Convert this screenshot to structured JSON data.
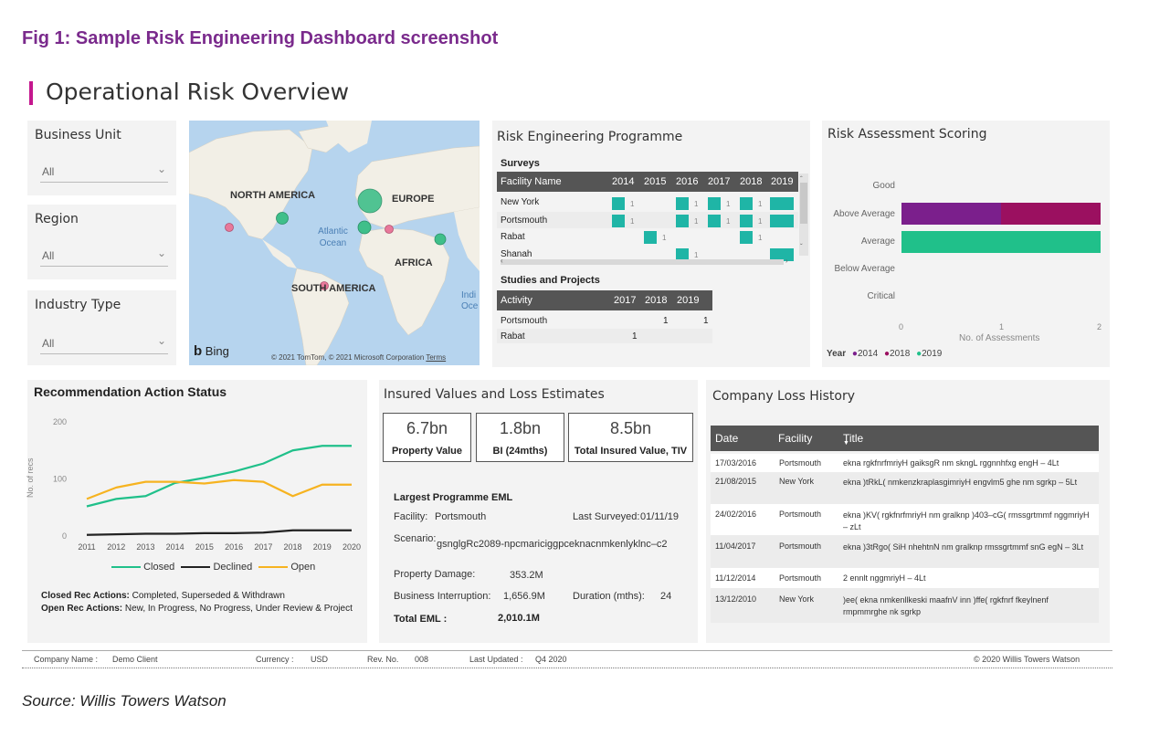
{
  "figure_caption": "Fig 1: Sample Risk Engineering Dashboard screenshot",
  "page_title": "Operational Risk Overview",
  "slicers": [
    {
      "label": "Business Unit",
      "value": "All"
    },
    {
      "label": "Region",
      "value": "All"
    },
    {
      "label": "Industry Type",
      "value": "All"
    }
  ],
  "map": {
    "labels": [
      "NORTH AMERICA",
      "EUROPE",
      "Atlantic Ocean",
      "AFRICA",
      "SOUTH AMERICA",
      "Indi Oce"
    ],
    "logo": "Bing",
    "copyright": "© 2021 TomTom, © 2021 Microsoft Corporation",
    "terms": "Terms",
    "marker_colors": {
      "closed": "#3fbf8a",
      "open": "#e8789a"
    }
  },
  "risk_programme": {
    "title": "Risk Engineering Programme",
    "surveys_label": "Surveys",
    "survey_header": [
      "Facility Name",
      "2014",
      "2015",
      "2016",
      "2017",
      "2018",
      "2019"
    ],
    "surveys": [
      {
        "name": "New York",
        "years": [
          1,
          0,
          1,
          1,
          1,
          1
        ]
      },
      {
        "name": "Portsmouth",
        "years": [
          1,
          0,
          1,
          1,
          1,
          1
        ]
      },
      {
        "name": "Rabat",
        "years": [
          0,
          1,
          0,
          0,
          1,
          0
        ]
      },
      {
        "name": "Shanah",
        "years": [
          0,
          0,
          1,
          0,
          0,
          1
        ]
      }
    ],
    "studies_label": "Studies and Projects",
    "studies_header": [
      "Activity",
      "2017",
      "2018",
      "2019"
    ],
    "studies": [
      {
        "name": "Portsmouth",
        "values": [
          "",
          "1",
          "1"
        ]
      },
      {
        "name": "Rabat",
        "values": [
          "1",
          "",
          ""
        ]
      }
    ]
  },
  "risk_scoring": {
    "title": "Risk Assessment Scoring",
    "categories": [
      "Good",
      "Above Average",
      "Average",
      "Below Average",
      "Critical"
    ],
    "x_ticks": [
      "0",
      "1",
      "2"
    ],
    "x_label": "No. of Assessments",
    "legend_title": "Year",
    "legend": [
      {
        "label": "2014",
        "color": "#7b1f8c"
      },
      {
        "label": "2018",
        "color": "#9b1060"
      },
      {
        "label": "2019",
        "color": "#20c08a"
      }
    ]
  },
  "chart_data": {
    "type": "line",
    "title": "Recommendation Action Status",
    "ylabel": "No. of recs",
    "xlabel": "",
    "x": [
      2011,
      2012,
      2013,
      2014,
      2015,
      2016,
      2017,
      2018,
      2019,
      2020
    ],
    "ylim": [
      0,
      200
    ],
    "y_ticks": [
      0,
      100,
      200
    ],
    "series": [
      {
        "name": "Closed",
        "color": "#20c08a",
        "values": [
          52,
          65,
          70,
          93,
          102,
          113,
          127,
          150,
          158,
          158
        ]
      },
      {
        "name": "Declined",
        "color": "#222222",
        "values": [
          2,
          3,
          4,
          4,
          5,
          5,
          6,
          10,
          10,
          10
        ]
      },
      {
        "name": "Open",
        "color": "#f6b320",
        "values": [
          65,
          85,
          95,
          95,
          92,
          98,
          95,
          70,
          90,
          90
        ]
      }
    ],
    "legend_position": "bottom"
  },
  "rec_notes": [
    {
      "label": "Closed Rec Actions:",
      "text": "Completed, Superseded & Withdrawn"
    },
    {
      "label": "Open Rec Actions:",
      "text": "New, In Progress, No Progress, Under Review & Project"
    }
  ],
  "insured": {
    "title": "Insured Values and Loss Estimates",
    "kpis": [
      {
        "value": "6.7bn",
        "label": "Property Value"
      },
      {
        "value": "1.8bn",
        "label": "BI (24mths)"
      },
      {
        "value": "8.5bn",
        "label": "Total Insured Value, TIV"
      }
    ],
    "eml_title": "Largest Programme EML",
    "facility_label": "Facility:",
    "facility": "Portsmouth",
    "last_surveyed_label": "Last Surveyed:",
    "last_surveyed": "01/11/19",
    "scenario_label": "Scenario:",
    "scenario": "gsnglgRc2089-npcmariciggpceknacnmkenlyklnc–c2",
    "property_damage_label": "Property Damage:",
    "property_damage": "353.2M",
    "bi_label": "Business Interruption:",
    "bi": "1,656.9M",
    "duration_label": "Duration (mths):",
    "duration": "24",
    "total_label": "Total EML :",
    "total": "2,010.1M"
  },
  "loss_history": {
    "title": "Company Loss History",
    "columns": [
      "Date",
      "Facility",
      "Title"
    ],
    "rows": [
      {
        "date": "17/03/2016",
        "facility": "Portsmouth",
        "title": "ekna rgkfnrfmriyH gaiksgR nm skngL rggnnhfxg engH – 4Lt"
      },
      {
        "date": "21/08/2015",
        "facility": "New York",
        "title": "ekna )tRkL( nmkenzkraplasgimriyH engvlm5 ghe nm sgrkp – 5Lt"
      },
      {
        "date": "24/02/2016",
        "facility": "Portsmouth",
        "title": "ekna )KV( rgkfnrfmriyH nm gralknp )403–cG( rmssgrtmmf nggmriyH – zLt"
      },
      {
        "date": "11/04/2017",
        "facility": "Portsmouth",
        "title": "ekna )3tRgo( SiH nhehtnN nm gralknp rmssgrtmmf snG egN – 3Lt"
      },
      {
        "date": "11/12/2014",
        "facility": "Portsmouth",
        "title": "2 ennlt nggmriyH – 4Lt"
      },
      {
        "date": "13/12/2010",
        "facility": "New York",
        "title": ")ee( ekna nmkenllkeski maafnV inn )ffe( rgkfnrf fkeylnenf rmpmmrghe nk sgrkp"
      }
    ]
  },
  "footer": {
    "company_label": "Company Name :",
    "company": "Demo Client",
    "currency_label": "Currency :",
    "currency": "USD",
    "rev_label": "Rev. No.",
    "rev": "008",
    "updated_label": "Last Updated :",
    "updated": "Q4 2020",
    "copyright": "© 2020 Willis Towers Watson"
  },
  "source": "Source: Willis Towers Watson"
}
